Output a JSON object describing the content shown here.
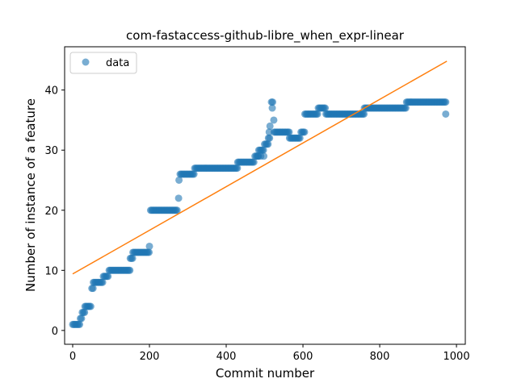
{
  "chart_data": {
    "type": "scatter",
    "title": "com-fastaccess-github-libre_when_expr-linear",
    "xlabel": "Commit number",
    "ylabel": "Number of instance of a feature",
    "xlim": [
      -21,
      1023
    ],
    "ylim": [
      -2.3,
      47.2
    ],
    "xticks": [
      0,
      200,
      400,
      600,
      800,
      1000
    ],
    "yticks": [
      0,
      10,
      20,
      30,
      40
    ],
    "grid": false,
    "legend": {
      "position": "upper-left",
      "entries": [
        "data"
      ]
    },
    "colors": {
      "data": "#1f77b4",
      "fit": "#ff7f0e"
    },
    "series": [
      {
        "name": "data",
        "kind": "scatter",
        "segments": [
          {
            "x_start": 0,
            "x_end": 20,
            "y": 1
          },
          {
            "x_start": 20,
            "x_end": 25,
            "y": 2
          },
          {
            "x_start": 25,
            "x_end": 32,
            "y": 3
          },
          {
            "x_start": 32,
            "x_end": 50,
            "y": 4
          },
          {
            "x_start": 50,
            "x_end": 54,
            "y": 7
          },
          {
            "x_start": 54,
            "x_end": 80,
            "y": 8
          },
          {
            "x_start": 80,
            "x_end": 95,
            "y": 9
          },
          {
            "x_start": 95,
            "x_end": 150,
            "y": 10
          },
          {
            "x_start": 150,
            "x_end": 157,
            "y": 12
          },
          {
            "x_start": 157,
            "x_end": 200,
            "y": 13
          },
          {
            "x_start": 200,
            "x_end": 203,
            "y": 14
          },
          {
            "x_start": 203,
            "x_end": 275,
            "y": 20
          },
          {
            "x_start": 277,
            "x_end": 279,
            "y": 25
          },
          {
            "x_start": 280,
            "x_end": 318,
            "y": 26
          },
          {
            "x_start": 318,
            "x_end": 430,
            "y": 27
          },
          {
            "x_start": 430,
            "x_end": 475,
            "y": 28
          },
          {
            "x_start": 475,
            "x_end": 485,
            "y": 29
          },
          {
            "x_start": 485,
            "x_end": 500,
            "y": 30
          },
          {
            "x_start": 500,
            "x_end": 510,
            "y": 31
          },
          {
            "x_start": 510,
            "x_end": 515,
            "y": 32
          },
          {
            "x_start": 525,
            "x_end": 565,
            "y": 33
          },
          {
            "x_start": 565,
            "x_end": 595,
            "y": 32
          },
          {
            "x_start": 595,
            "x_end": 605,
            "y": 33
          },
          {
            "x_start": 605,
            "x_end": 640,
            "y": 36
          },
          {
            "x_start": 640,
            "x_end": 660,
            "y": 37
          },
          {
            "x_start": 660,
            "x_end": 760,
            "y": 36
          },
          {
            "x_start": 760,
            "x_end": 870,
            "y": 37
          },
          {
            "x_start": 870,
            "x_end": 975,
            "y": 38
          }
        ],
        "extra_points": [
          [
            276,
            22
          ],
          [
            483,
            29
          ],
          [
            490,
            29
          ],
          [
            498,
            29
          ],
          [
            512,
            33
          ],
          [
            514,
            34
          ],
          [
            518,
            38
          ],
          [
            521,
            38
          ],
          [
            520,
            37
          ],
          [
            524,
            35
          ],
          [
            972,
            36
          ]
        ]
      },
      {
        "name": "fit",
        "kind": "line",
        "x": [
          0,
          975
        ],
        "y": [
          9.4,
          44.8
        ]
      }
    ]
  }
}
